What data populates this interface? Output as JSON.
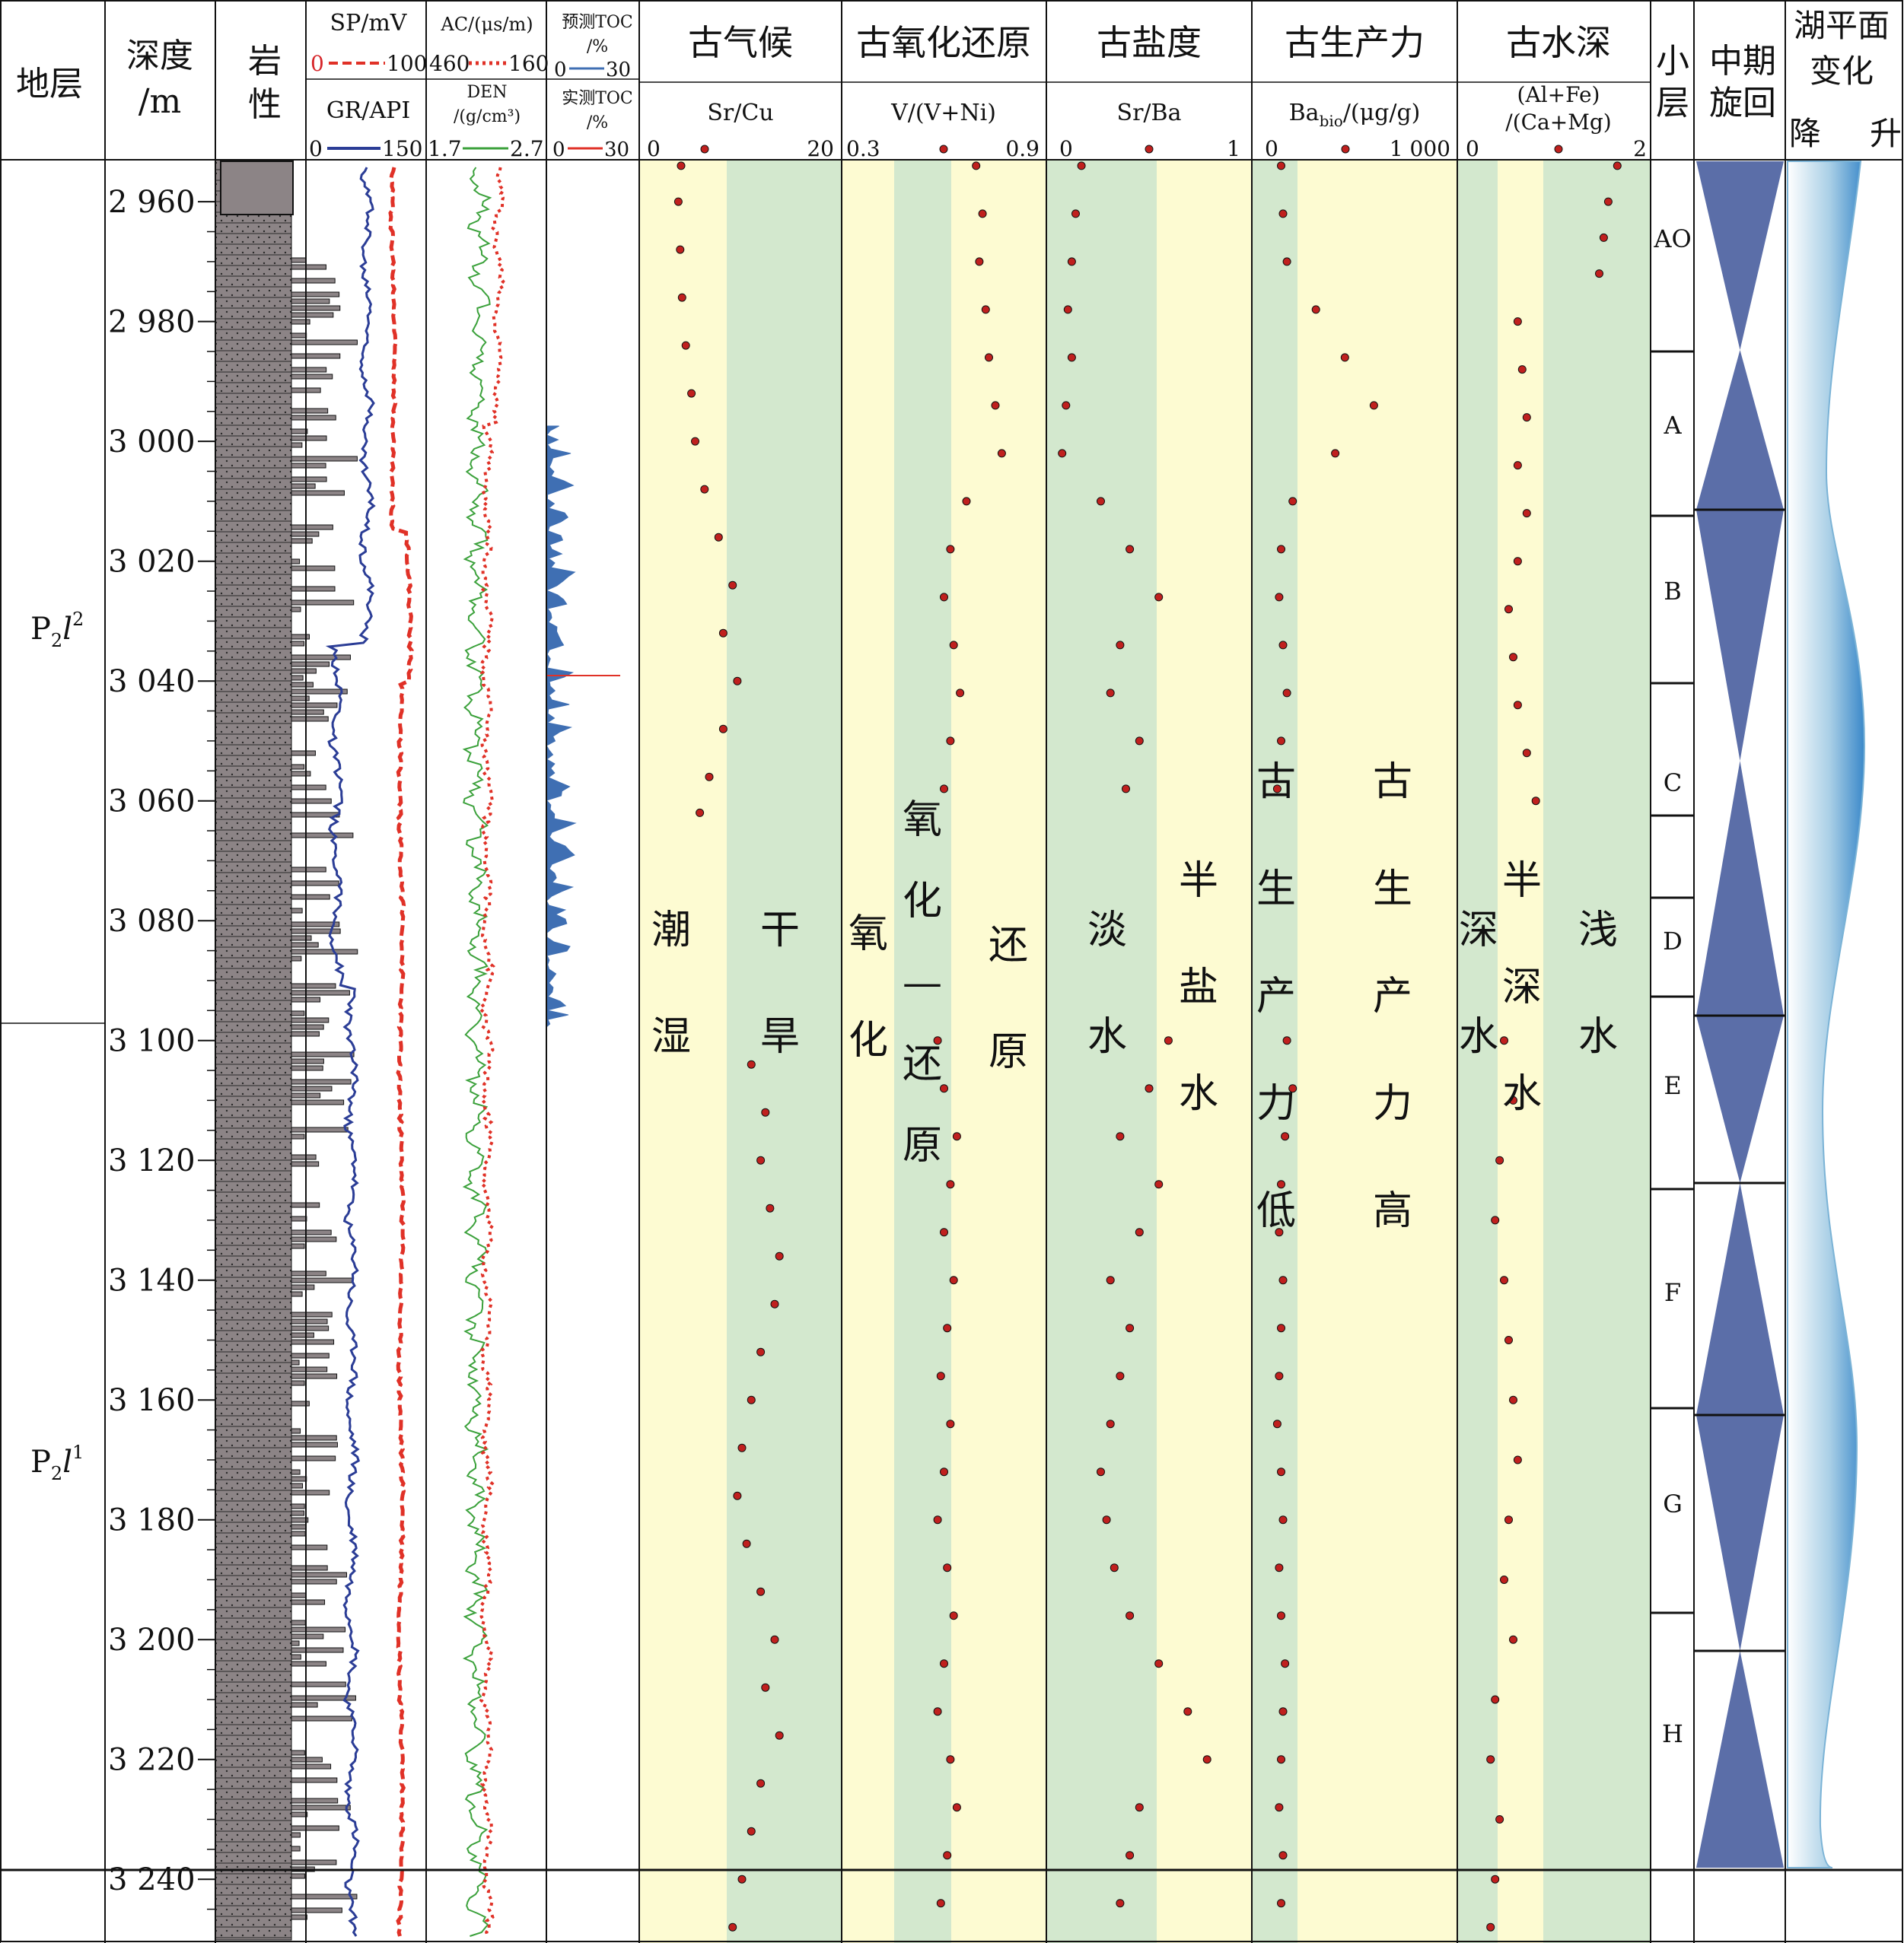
{
  "header": {
    "stratum": "地层",
    "depth": [
      "深度",
      "/m"
    ],
    "lithology": [
      "岩",
      "性"
    ],
    "sp": {
      "title": "SP/mV",
      "min": "0",
      "max": "100"
    },
    "gr": {
      "title": "GR/API",
      "min": "0",
      "max": "150"
    },
    "ac": {
      "title": "AC/(μs/m)",
      "min": "460",
      "max": "160"
    },
    "den": {
      "title": [
        "DEN",
        "/(g/cm³)"
      ],
      "min": "1.7",
      "max": "2.7"
    },
    "toc_pred": {
      "title": [
        "预测TOC",
        "/%"
      ],
      "min": "0",
      "max": "30"
    },
    "toc_meas": {
      "title": [
        "实测TOC",
        "/%"
      ],
      "min": "0",
      "max": "30"
    },
    "climate": {
      "title": "古气候",
      "param": "Sr/Cu",
      "min": "0",
      "max": "20"
    },
    "redox": {
      "title": "古氧化还原",
      "param": "V/(V+Ni)",
      "min": "0.3",
      "max": "0.9"
    },
    "salinity": {
      "title": "古盐度",
      "param": "Sr/Ba",
      "min": "0",
      "max": "1"
    },
    "productivity": {
      "title": "古生产力",
      "param": "Ba",
      "param_sub": "bio",
      "param_unit": "/(μg/g)",
      "min": "0",
      "max": "1 000"
    },
    "waterdepth": {
      "title": "古水深",
      "param": [
        "(Al+Fe)",
        "/(Ca+Mg)"
      ],
      "min": "0",
      "max": "2"
    },
    "sublayer": [
      "小",
      "层"
    ],
    "cycle": [
      "中期",
      "旋回"
    ],
    "lake": {
      "title": [
        "湖平面",
        "变化"
      ],
      "fall": "降",
      "rise": "升"
    }
  },
  "depth_ticks": [
    "2 960",
    "2 980",
    "3 000",
    "3 020",
    "3 040",
    "3 060",
    "3 080",
    "3 100",
    "3 120",
    "3 140",
    "3 160",
    "3 180",
    "3 200",
    "3 220",
    "3 240"
  ],
  "strata": [
    {
      "main": "P",
      "sub": "2",
      "it": "l",
      "sup": "2"
    },
    {
      "main": "P",
      "sub": "2",
      "it": "l",
      "sup": "1"
    }
  ],
  "sublayers": [
    "AO",
    "A",
    "B",
    "C",
    "D",
    "E",
    "F",
    "G",
    "H"
  ],
  "zone_labels": {
    "climate": [
      "潮湿",
      "干旱"
    ],
    "redox": [
      "氧化",
      "氧化—还原",
      "还原"
    ],
    "salinity": [
      "淡水",
      "半盐水"
    ],
    "productivity": [
      "古生产力低",
      "古生产力高"
    ],
    "waterdepth": [
      "深水",
      "半深水",
      "浅水"
    ]
  },
  "colors": {
    "yellow_zone": "#fdfbd2",
    "green_zone": "#d3e8ce",
    "cycle_blue": "#5b6ea8",
    "gr_line": "#2b3d96",
    "sp_line": "#e03127",
    "den_line": "#3ba13b",
    "toc_fill": "#3f6fb3",
    "dot": "#c0201e",
    "lake_blue": "#7bb3d6"
  },
  "chart_data": {
    "type": "scatter",
    "depth_range_m": [
      2953,
      3250
    ],
    "series": [
      {
        "name": "Sr/Cu",
        "x_range": [
          0,
          20
        ],
        "depth": [
          2954,
          2960,
          2968,
          2976,
          2984,
          2992,
          3000,
          3008,
          3016,
          3024,
          3032,
          3040,
          3048,
          3056,
          3062,
          3104,
          3112,
          3120,
          3128,
          3136,
          3144,
          3152,
          3160,
          3168,
          3176,
          3184,
          3192,
          3200,
          3208,
          3216,
          3224,
          3232,
          3240,
          3248
        ],
        "value": [
          3.5,
          3.2,
          3.4,
          3.6,
          4.0,
          4.6,
          5.0,
          6.0,
          7.5,
          9.0,
          8.0,
          9.5,
          8.0,
          6.5,
          5.5,
          11.0,
          12.5,
          12.0,
          13.0,
          14.0,
          13.5,
          12.0,
          11.0,
          10.0,
          9.5,
          10.5,
          12.0,
          13.5,
          12.5,
          14.0,
          12.0,
          11.0,
          10.0,
          9.0
        ]
      },
      {
        "name": "V/(V+Ni)",
        "x_range": [
          0.3,
          0.9
        ],
        "depth": [
          2954,
          2962,
          2970,
          2978,
          2986,
          2994,
          3002,
          3010,
          3018,
          3026,
          3034,
          3042,
          3050,
          3058,
          3100,
          3108,
          3116,
          3124,
          3132,
          3140,
          3148,
          3156,
          3164,
          3172,
          3180,
          3188,
          3196,
          3204,
          3212,
          3220,
          3228,
          3236,
          3244
        ],
        "value": [
          0.7,
          0.72,
          0.71,
          0.73,
          0.74,
          0.76,
          0.78,
          0.67,
          0.62,
          0.6,
          0.63,
          0.65,
          0.62,
          0.6,
          0.58,
          0.6,
          0.64,
          0.62,
          0.6,
          0.63,
          0.61,
          0.59,
          0.62,
          0.6,
          0.58,
          0.61,
          0.63,
          0.6,
          0.58,
          0.62,
          0.64,
          0.61,
          0.59
        ]
      },
      {
        "name": "Sr/Ba",
        "x_range": [
          0,
          1
        ],
        "depth": [
          2954,
          2962,
          2970,
          2978,
          2986,
          2994,
          3002,
          3010,
          3018,
          3026,
          3034,
          3042,
          3050,
          3058,
          3100,
          3108,
          3116,
          3124,
          3132,
          3140,
          3148,
          3156,
          3164,
          3172,
          3180,
          3188,
          3196,
          3204,
          3212,
          3220,
          3228,
          3236,
          3244
        ],
        "value": [
          0.15,
          0.12,
          0.1,
          0.08,
          0.1,
          0.07,
          0.05,
          0.25,
          0.4,
          0.55,
          0.35,
          0.3,
          0.45,
          0.38,
          0.6,
          0.5,
          0.35,
          0.55,
          0.45,
          0.3,
          0.4,
          0.35,
          0.3,
          0.25,
          0.28,
          0.32,
          0.4,
          0.55,
          0.7,
          0.8,
          0.45,
          0.4,
          0.35
        ]
      },
      {
        "name": "Ba_bio",
        "x_range": [
          0,
          1000
        ],
        "depth": [
          2954,
          2962,
          2970,
          2978,
          2986,
          2994,
          3002,
          3010,
          3018,
          3026,
          3034,
          3042,
          3050,
          3058,
          3100,
          3108,
          3116,
          3124,
          3132,
          3140,
          3148,
          3156,
          3164,
          3172,
          3180,
          3188,
          3196,
          3204,
          3212,
          3220,
          3228,
          3236,
          3244
        ],
        "value": [
          120,
          130,
          150,
          300,
          450,
          600,
          400,
          180,
          120,
          110,
          130,
          150,
          120,
          100,
          150,
          180,
          140,
          120,
          110,
          130,
          120,
          110,
          100,
          120,
          130,
          110,
          120,
          140,
          130,
          120,
          110,
          130,
          120
        ]
      },
      {
        "name": "(Al+Fe)/(Ca+Mg)",
        "x_range": [
          0,
          2
        ],
        "depth": [
          2954,
          2960,
          2966,
          2972,
          2980,
          2988,
          2996,
          3004,
          3012,
          3020,
          3028,
          3036,
          3044,
          3052,
          3060,
          3100,
          3110,
          3120,
          3130,
          3140,
          3150,
          3160,
          3170,
          3180,
          3190,
          3200,
          3210,
          3220,
          3230,
          3240,
          3248
        ],
        "value": [
          1.7,
          1.6,
          1.55,
          1.5,
          0.6,
          0.65,
          0.7,
          0.6,
          0.7,
          0.6,
          0.5,
          0.55,
          0.6,
          0.7,
          0.8,
          0.45,
          0.55,
          0.4,
          0.35,
          0.45,
          0.5,
          0.55,
          0.6,
          0.5,
          0.45,
          0.55,
          0.35,
          0.3,
          0.4,
          0.35,
          0.3
        ]
      }
    ]
  }
}
